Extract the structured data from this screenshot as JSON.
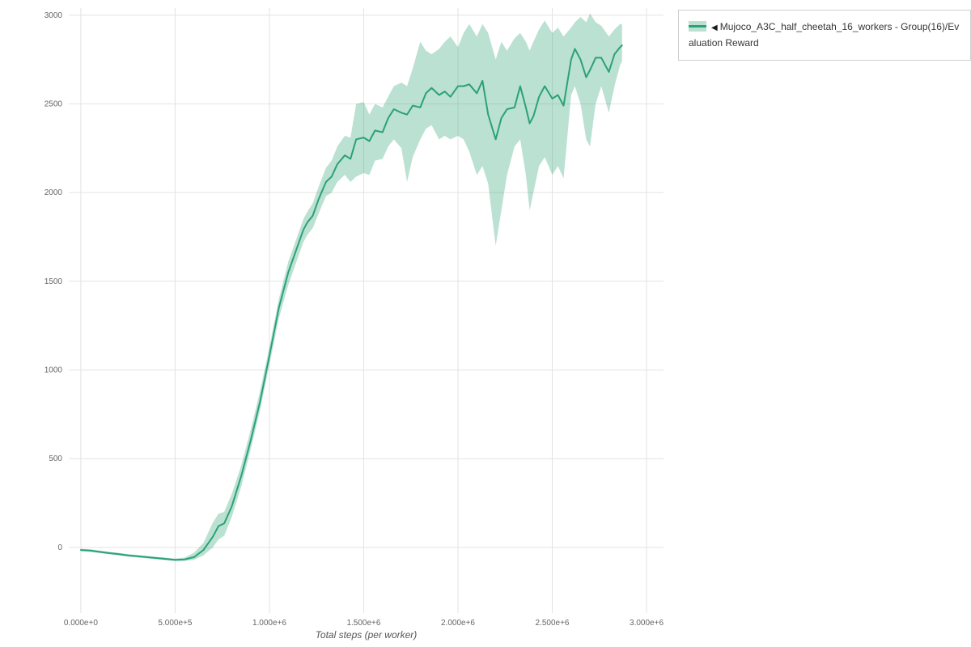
{
  "legend": {
    "toggle_icon": "◀",
    "label": "Mujoco_A3C_half_cheetah_16_workers - Group(16)/Evaluation Reward"
  },
  "chart_data": {
    "type": "line",
    "title": "",
    "xlabel": "Total steps (per worker)",
    "ylabel": "",
    "grid": true,
    "legend_position": "top-right-outside",
    "x_domain": [
      -64000,
      3090000
    ],
    "y_domain": [
      -370,
      3040
    ],
    "x_ticks": [
      {
        "value": 0,
        "label": "0.000e+0"
      },
      {
        "value": 500000,
        "label": "5.000e+5"
      },
      {
        "value": 1000000,
        "label": "1.000e+6"
      },
      {
        "value": 1500000,
        "label": "1.500e+6"
      },
      {
        "value": 2000000,
        "label": "2.000e+6"
      },
      {
        "value": 2500000,
        "label": "2.500e+6"
      },
      {
        "value": 3000000,
        "label": "3.000e+6"
      }
    ],
    "y_ticks": [
      {
        "value": 0,
        "label": "0"
      },
      {
        "value": 500,
        "label": "500"
      },
      {
        "value": 1000,
        "label": "1000"
      },
      {
        "value": 1500,
        "label": "1500"
      },
      {
        "value": 2000,
        "label": "2000"
      },
      {
        "value": 2500,
        "label": "2500"
      },
      {
        "value": 3000,
        "label": "3000"
      }
    ],
    "series": [
      {
        "name": "Mujoco_A3C_half_cheetah_16_workers - Group(16)/Evaluation Reward",
        "color": "#2ba177",
        "band_color": "#2ba177",
        "band_opacity": 0.32,
        "x": [
          0,
          50000,
          100000,
          150000,
          200000,
          250000,
          300000,
          350000,
          400000,
          450000,
          500000,
          550000,
          600000,
          650000,
          700000,
          730000,
          760000,
          800000,
          850000,
          900000,
          950000,
          1000000,
          1050000,
          1100000,
          1150000,
          1180000,
          1200000,
          1230000,
          1260000,
          1300000,
          1330000,
          1360000,
          1400000,
          1430000,
          1460000,
          1500000,
          1530000,
          1560000,
          1600000,
          1630000,
          1660000,
          1700000,
          1730000,
          1760000,
          1800000,
          1830000,
          1860000,
          1900000,
          1930000,
          1960000,
          2000000,
          2030000,
          2060000,
          2100000,
          2130000,
          2160000,
          2200000,
          2230000,
          2260000,
          2300000,
          2330000,
          2360000,
          2380000,
          2400000,
          2430000,
          2460000,
          2500000,
          2530000,
          2560000,
          2600000,
          2620000,
          2650000,
          2680000,
          2700000,
          2730000,
          2760000,
          2800000,
          2830000,
          2860000,
          2870000
        ],
        "mean": [
          -15,
          -18,
          -25,
          -32,
          -38,
          -45,
          -50,
          -55,
          -60,
          -65,
          -70,
          -68,
          -55,
          -15,
          60,
          120,
          135,
          230,
          400,
          600,
          820,
          1080,
          1350,
          1550,
          1700,
          1790,
          1830,
          1870,
          1960,
          2060,
          2090,
          2160,
          2210,
          2190,
          2300,
          2310,
          2290,
          2350,
          2340,
          2420,
          2470,
          2450,
          2440,
          2490,
          2480,
          2560,
          2590,
          2550,
          2570,
          2540,
          2600,
          2600,
          2610,
          2560,
          2630,
          2440,
          2300,
          2420,
          2470,
          2480,
          2600,
          2480,
          2390,
          2430,
          2540,
          2600,
          2530,
          2550,
          2490,
          2750,
          2810,
          2750,
          2650,
          2690,
          2760,
          2760,
          2680,
          2780,
          2820,
          2830
        ],
        "lower": [
          -22,
          -25,
          -32,
          -39,
          -45,
          -52,
          -57,
          -62,
          -67,
          -72,
          -77,
          -76,
          -70,
          -45,
          0,
          45,
          65,
          170,
          340,
          550,
          770,
          1030,
          1290,
          1480,
          1630,
          1720,
          1760,
          1800,
          1880,
          1980,
          2000,
          2060,
          2100,
          2060,
          2090,
          2110,
          2100,
          2180,
          2190,
          2260,
          2300,
          2250,
          2060,
          2200,
          2300,
          2360,
          2380,
          2300,
          2320,
          2300,
          2320,
          2300,
          2230,
          2100,
          2150,
          2050,
          1700,
          1900,
          2100,
          2260,
          2300,
          2100,
          1900,
          2000,
          2150,
          2200,
          2100,
          2150,
          2080,
          2550,
          2600,
          2500,
          2300,
          2260,
          2500,
          2600,
          2450,
          2600,
          2720,
          2740
        ],
        "upper": [
          -8,
          -11,
          -18,
          -25,
          -31,
          -38,
          -43,
          -48,
          -53,
          -58,
          -63,
          -58,
          -30,
          25,
          140,
          190,
          200,
          300,
          460,
          660,
          880,
          1130,
          1400,
          1610,
          1760,
          1850,
          1890,
          1940,
          2030,
          2140,
          2180,
          2260,
          2320,
          2310,
          2500,
          2510,
          2440,
          2500,
          2480,
          2540,
          2600,
          2620,
          2600,
          2700,
          2850,
          2800,
          2780,
          2810,
          2850,
          2880,
          2820,
          2900,
          2950,
          2880,
          2950,
          2900,
          2750,
          2850,
          2800,
          2870,
          2900,
          2850,
          2800,
          2850,
          2920,
          2970,
          2900,
          2930,
          2880,
          2930,
          2960,
          2990,
          2960,
          3010,
          2960,
          2940,
          2880,
          2920,
          2950,
          2950
        ]
      }
    ]
  }
}
